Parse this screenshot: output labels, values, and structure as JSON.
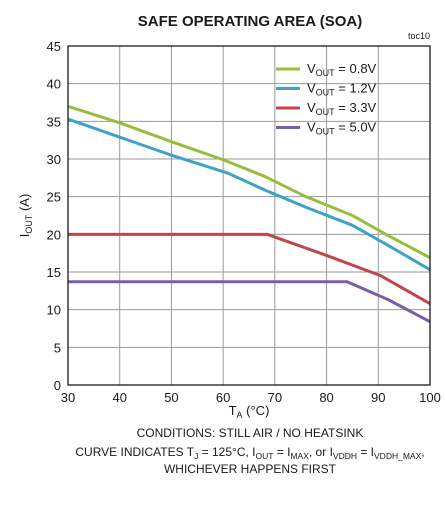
{
  "chart_data": {
    "type": "line",
    "title": "SAFE OPERATING AREA (SOA)",
    "toc": "toc10",
    "xlabel": {
      "main": "T",
      "sub": "A",
      "rest": " (°C)"
    },
    "ylabel": {
      "main": "I",
      "sub": "OUT",
      "rest": " (A)"
    },
    "xlim": [
      30,
      100
    ],
    "ylim": [
      0,
      45
    ],
    "xticks": [
      30,
      40,
      50,
      60,
      70,
      80,
      90,
      100
    ],
    "yticks": [
      0,
      5,
      10,
      15,
      20,
      25,
      30,
      35,
      40,
      45
    ],
    "grid": true,
    "legend_position": "top-right",
    "series": [
      {
        "name": "V_OUT = 0.8V",
        "label_main": "V",
        "label_sub": "OUT",
        "label_rest": " = 0.8V",
        "color": "#9bbb3c",
        "x": [
          30,
          40,
          50,
          60,
          68,
          76,
          85,
          92,
          100
        ],
        "y": [
          37,
          34.8,
          32.3,
          29.9,
          27.7,
          25,
          22.5,
          19.8,
          16.9
        ]
      },
      {
        "name": "V_OUT = 1.2V",
        "label_main": "V",
        "label_sub": "OUT",
        "label_rest": " = 1.2V",
        "color": "#3da3c4",
        "x": [
          30,
          40,
          50,
          61,
          68,
          76,
          85,
          92,
          100
        ],
        "y": [
          35.3,
          32.9,
          30.5,
          28.1,
          25.9,
          23.6,
          21.2,
          18.5,
          15.3
        ]
      },
      {
        "name": "V_OUT = 3.3V",
        "label_main": "V",
        "label_sub": "OUT",
        "label_rest": " = 3.3V",
        "color": "#c0464a",
        "x": [
          30,
          68.5,
          80,
          90.5,
          100
        ],
        "y": [
          20,
          20,
          17.2,
          14.5,
          10.8
        ]
      },
      {
        "name": "V_OUT = 5.0V",
        "label_main": "V",
        "label_sub": "OUT",
        "label_rest": " = 5.0V",
        "color": "#7a5ea8",
        "x": [
          30,
          84,
          92,
          100
        ],
        "y": [
          13.7,
          13.7,
          11.3,
          8.4
        ]
      }
    ]
  },
  "conditions": {
    "line1": "CONDITIONS:  STILL AIR / NO HEATSINK",
    "line2_parts": [
      {
        "t": "CURVE INDICATES  T"
      },
      {
        "t": "J",
        "sub": true
      },
      {
        "t": " = 125°C, I"
      },
      {
        "t": "OUT",
        "sub": true
      },
      {
        "t": " = I"
      },
      {
        "t": "MAX",
        "sub": true
      },
      {
        "t": ", or I"
      },
      {
        "t": "VDDH",
        "sub": true
      },
      {
        "t": " = I"
      },
      {
        "t": "VDDH_MAX",
        "sub": true
      },
      {
        "t": ","
      }
    ],
    "line3": "WHICHEVER  HAPPENS FIRST"
  }
}
